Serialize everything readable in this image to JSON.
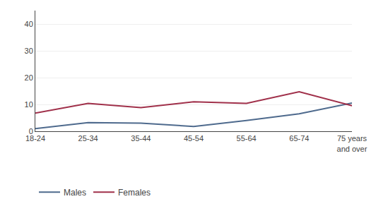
{
  "chart_data": {
    "type": "line",
    "categories": [
      "18-24",
      "25-34",
      "35-44",
      "45-54",
      "55-64",
      "65-74",
      "75 years\nand over"
    ],
    "series": [
      {
        "name": "Males",
        "color": "#4e6a8d",
        "values": [
          1.0,
          3.2,
          3.0,
          1.8,
          4.0,
          6.5,
          10.5
        ]
      },
      {
        "name": "Females",
        "color": "#a0304a",
        "values": [
          6.8,
          10.4,
          8.8,
          11.0,
          10.4,
          14.7,
          9.5
        ]
      }
    ],
    "ylim": [
      0,
      45
    ],
    "yticks": [
      0,
      10,
      20,
      30,
      40
    ],
    "grid": true,
    "legend": "lower left"
  }
}
